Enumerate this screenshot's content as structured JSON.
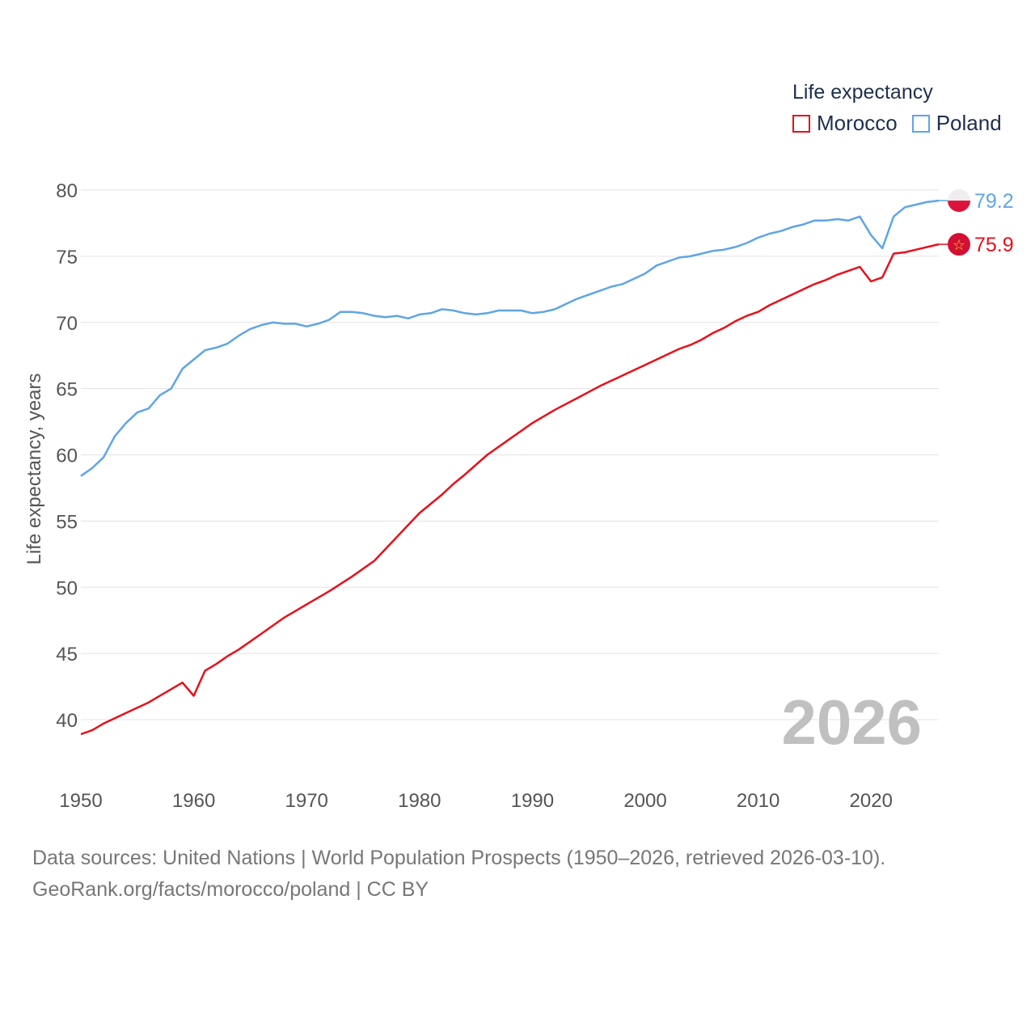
{
  "legend": {
    "title": "Life expectancy",
    "items": [
      {
        "label": "Morocco",
        "color": "#e8101a"
      },
      {
        "label": "Poland",
        "color": "#5fa5e6"
      }
    ]
  },
  "footer": {
    "line1": "Data sources: United Nations | World Population Prospects (1950–2026, retrieved 2026-03-10).",
    "line2": "GeoRank.org/facts/morocco/poland | CC BY"
  },
  "chart_data": {
    "type": "line",
    "title": "Life expectancy",
    "xlabel": "",
    "ylabel": "Life expectancy, years",
    "xlim": [
      1950,
      2026
    ],
    "ylim": [
      37,
      82
    ],
    "x_ticks": [
      1950,
      1960,
      1970,
      1980,
      1990,
      2000,
      2010,
      2020
    ],
    "y_ticks": [
      40,
      45,
      50,
      55,
      60,
      65,
      70,
      75,
      80
    ],
    "year_watermark": "2026",
    "series": [
      {
        "name": "Morocco",
        "color": "#e8101a",
        "end_label": "75.9",
        "flag_icon": "morocco-flag-icon",
        "x": [
          1950,
          1951,
          1952,
          1954,
          1956,
          1958,
          1959,
          1960,
          1961,
          1962,
          1963,
          1964,
          1966,
          1968,
          1970,
          1972,
          1974,
          1976,
          1978,
          1980,
          1982,
          1983,
          1984,
          1986,
          1988,
          1990,
          1992,
          1994,
          1996,
          1998,
          2000,
          2002,
          2003,
          2004,
          2005,
          2006,
          2007,
          2008,
          2009,
          2010,
          2011,
          2012,
          2013,
          2014,
          2015,
          2016,
          2017,
          2018,
          2019,
          2020,
          2021,
          2022,
          2023,
          2024,
          2025,
          2026
        ],
        "values": [
          38.9,
          39.2,
          39.7,
          40.5,
          41.3,
          42.3,
          42.8,
          41.8,
          43.7,
          44.2,
          44.8,
          45.3,
          46.5,
          47.7,
          48.7,
          49.7,
          50.8,
          52.0,
          53.8,
          55.6,
          57.0,
          57.8,
          58.5,
          60.0,
          61.2,
          62.4,
          63.4,
          64.3,
          65.2,
          66.0,
          66.8,
          67.6,
          68.0,
          68.3,
          68.7,
          69.2,
          69.6,
          70.1,
          70.5,
          70.8,
          71.3,
          71.7,
          72.1,
          72.5,
          72.9,
          73.2,
          73.6,
          73.9,
          74.2,
          73.1,
          73.4,
          75.2,
          75.3,
          75.5,
          75.7,
          75.9
        ]
      },
      {
        "name": "Poland",
        "color": "#5fa5e6",
        "end_label": "79.2",
        "flag_icon": "poland-flag-icon",
        "x": [
          1950,
          1951,
          1952,
          1953,
          1954,
          1955,
          1956,
          1957,
          1958,
          1959,
          1960,
          1961,
          1962,
          1963,
          1964,
          1965,
          1966,
          1967,
          1968,
          1969,
          1970,
          1971,
          1972,
          1973,
          1974,
          1975,
          1976,
          1977,
          1978,
          1979,
          1980,
          1981,
          1982,
          1983,
          1984,
          1985,
          1986,
          1987,
          1988,
          1989,
          1990,
          1991,
          1992,
          1993,
          1994,
          1995,
          1996,
          1997,
          1998,
          1999,
          2000,
          2001,
          2002,
          2003,
          2004,
          2005,
          2006,
          2007,
          2008,
          2009,
          2010,
          2011,
          2012,
          2013,
          2014,
          2015,
          2016,
          2017,
          2018,
          2019,
          2020,
          2021,
          2022,
          2023,
          2024,
          2025,
          2026
        ],
        "values": [
          58.4,
          59.0,
          59.8,
          61.4,
          62.4,
          63.2,
          63.5,
          64.5,
          65.0,
          66.5,
          67.2,
          67.9,
          68.1,
          68.4,
          69.0,
          69.5,
          69.8,
          70.0,
          69.9,
          69.9,
          69.7,
          69.9,
          70.2,
          70.8,
          70.8,
          70.7,
          70.5,
          70.4,
          70.5,
          70.3,
          70.6,
          70.7,
          71.0,
          70.9,
          70.7,
          70.6,
          70.7,
          70.9,
          70.9,
          70.9,
          70.7,
          70.8,
          71.0,
          71.4,
          71.8,
          72.1,
          72.4,
          72.7,
          72.9,
          73.3,
          73.7,
          74.3,
          74.6,
          74.9,
          75.0,
          75.2,
          75.4,
          75.5,
          75.7,
          76.0,
          76.4,
          76.7,
          76.9,
          77.2,
          77.4,
          77.7,
          77.7,
          77.8,
          77.7,
          78.0,
          76.6,
          75.6,
          78.0,
          78.7,
          78.9,
          79.1,
          79.2
        ]
      }
    ]
  }
}
